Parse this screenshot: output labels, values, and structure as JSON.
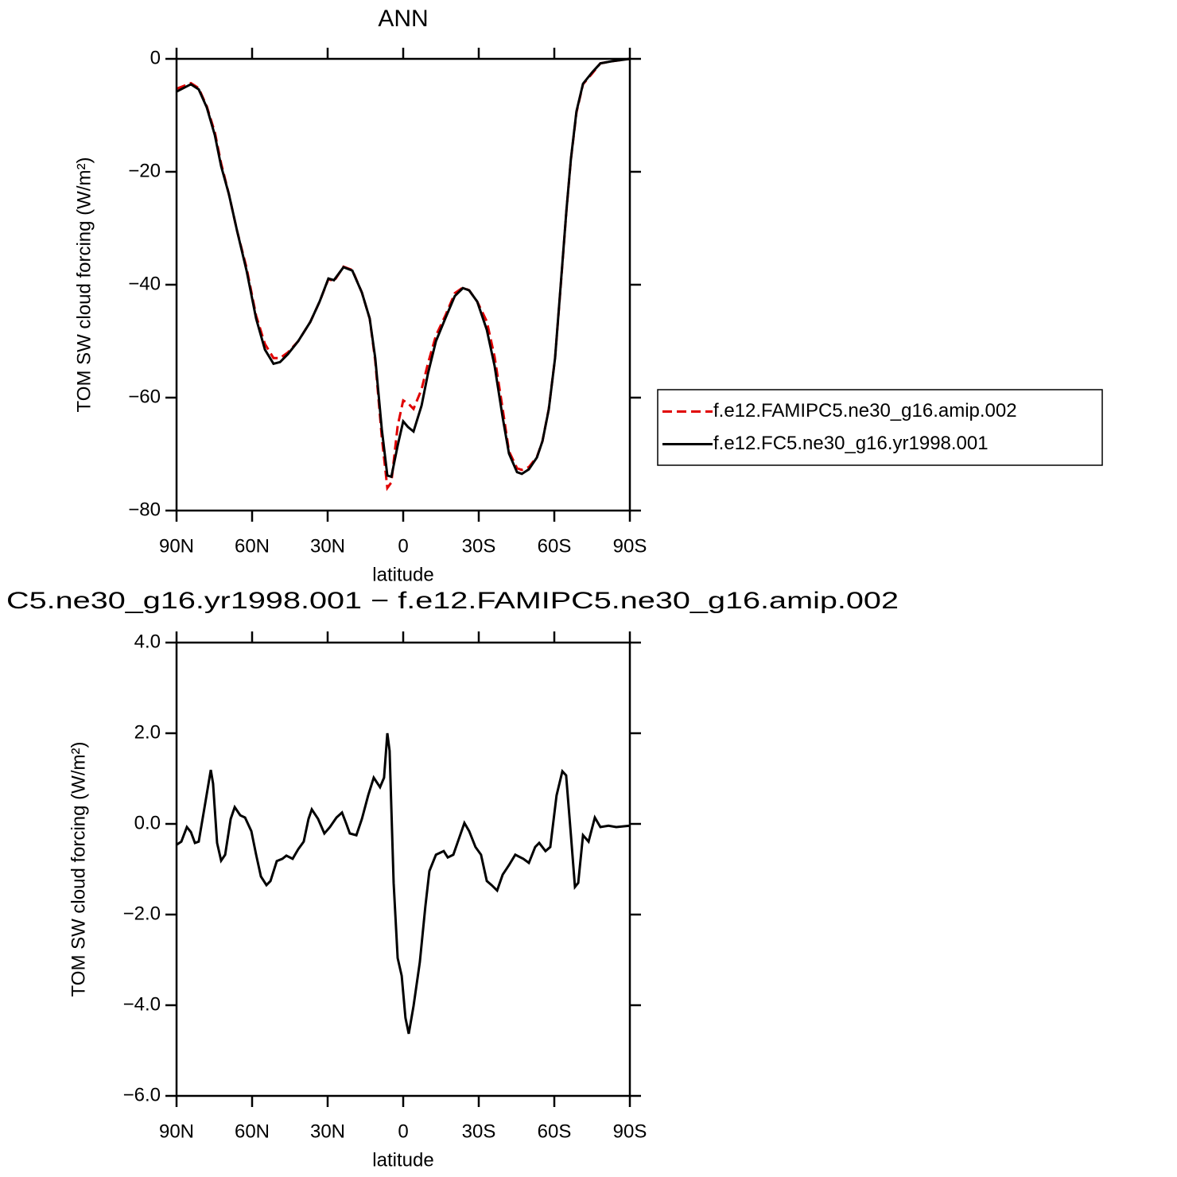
{
  "chart_data": [
    {
      "type": "line",
      "title": "ANN",
      "xlabel": "latitude",
      "ylabel": "TOM SW cloud forcing (W/m²)",
      "x": [
        90,
        84.3,
        81.2,
        78,
        74.8,
        72.3,
        69.2,
        66,
        62.2,
        58.4,
        54.9,
        51.5,
        48.9,
        45.8,
        41.7,
        36.9,
        33.2,
        29.7,
        27.5,
        23.7,
        20.2,
        16.4,
        13.3,
        11.1,
        8.5,
        6.3,
        4.7,
        2.2,
        0,
        -1.9,
        -4.1,
        -7.3,
        -9.8,
        -13,
        -16.7,
        -20.5,
        -23.7,
        -26.2,
        -29.4,
        -33.2,
        -36.3,
        -39.5,
        -42,
        -45.2,
        -47.1,
        -49.9,
        -53.1,
        -55.3,
        -57.8,
        -60.3,
        -62.5,
        -64.8,
        -66.6,
        -68.8,
        -71.4,
        -75.2,
        -78.3,
        -83.1,
        -90
      ],
      "series": [
        {
          "name": "f.e12.FAMIPC5.ne30_g16.amip.002",
          "color": "#e00000",
          "line_style": "dashed",
          "values": [
            -5.3,
            -4.3,
            -5.2,
            -8.4,
            -13,
            -18.5,
            -24,
            -30.4,
            -37,
            -45.5,
            -50.5,
            -53,
            -53,
            -52,
            -50,
            -46.6,
            -43,
            -39,
            -39.4,
            -36.8,
            -37.4,
            -41.4,
            -46,
            -53.5,
            -67,
            -76,
            -75,
            -65,
            -60.5,
            -61,
            -62,
            -58.5,
            -54,
            -49,
            -45.5,
            -41.5,
            -40.5,
            -41,
            -43,
            -46.5,
            -52.8,
            -62,
            -69.5,
            -72.5,
            -72.8,
            -72.3,
            -70.5,
            -67.7,
            -62,
            -53,
            -40.5,
            -27,
            -17.8,
            -9.5,
            -4.5,
            -2.5,
            -0.8,
            -0.4,
            0
          ]
        },
        {
          "name": "f.e12.FC5.ne30_g16.yr1998.001",
          "color": "#000000",
          "line_style": "solid",
          "values": [
            -5.8,
            -4.5,
            -5.4,
            -8.6,
            -13.5,
            -19,
            -24,
            -30.4,
            -37.5,
            -46,
            -51.5,
            -54,
            -53.7,
            -52.3,
            -50,
            -46.6,
            -43,
            -38.9,
            -39.2,
            -36.9,
            -37.5,
            -41.4,
            -46,
            -53,
            -65.6,
            -73.8,
            -74,
            -68.5,
            -64.2,
            -65.2,
            -66,
            -61.4,
            -55.8,
            -50,
            -46,
            -42,
            -40.6,
            -41,
            -43,
            -48,
            -54.4,
            -63.5,
            -69.9,
            -73.2,
            -73.5,
            -72.7,
            -70.6,
            -67.7,
            -62.1,
            -53,
            -40.3,
            -26.9,
            -17.7,
            -9.3,
            -4.4,
            -2.3,
            -0.8,
            -0.4,
            0
          ]
        }
      ],
      "xlim": [
        90,
        -90
      ],
      "xticks": [
        {
          "value": 90,
          "label": "90N"
        },
        {
          "value": 60,
          "label": "60N"
        },
        {
          "value": 30,
          "label": "30N"
        },
        0,
        {
          "value": -30,
          "label": "30S"
        },
        {
          "value": -60,
          "label": "60S"
        },
        {
          "value": -90,
          "label": "90S"
        }
      ],
      "ylim": [
        -80,
        0
      ],
      "yticks": [
        0,
        {
          "value": -20,
          "label": "−20"
        },
        {
          "value": -40,
          "label": "−40"
        },
        {
          "value": -60,
          "label": "−60"
        },
        {
          "value": -80,
          "label": "−80"
        }
      ],
      "legend": "right"
    },
    {
      "type": "line",
      "title": "C5.ne30_g16.yr1998.001 − f.e12.FAMIPC5.ne30_g16.amip.002",
      "xlabel": "latitude",
      "ylabel": "TOM SW cloud forcing (W/m²)",
      "x": [
        90,
        88.1,
        85.9,
        84.3,
        82.7,
        81.2,
        78.6,
        76.4,
        75.5,
        73.9,
        72.3,
        70.7,
        68.5,
        66.9,
        64.7,
        62.8,
        60.3,
        58.4,
        56.5,
        54.3,
        52.7,
        50.2,
        48,
        46.4,
        43.9,
        41.7,
        39.5,
        37.6,
        36.3,
        33.8,
        31.3,
        29.1,
        26.5,
        24.3,
        22.7,
        21.2,
        18.6,
        16.4,
        13.9,
        11.7,
        9.2,
        7.6,
        6.3,
        5.4,
        3.8,
        2.2,
        0.6,
        -0.9,
        -2.2,
        -4.1,
        -6.6,
        -8.8,
        -10.4,
        -13,
        -16.1,
        -17.7,
        -19.9,
        -22.1,
        -24.3,
        -26.2,
        -28.7,
        -30.9,
        -33.2,
        -35.1,
        -37.3,
        -39.5,
        -42,
        -44.5,
        -47.7,
        -49.9,
        -52.4,
        -54,
        -56.5,
        -58.4,
        -60.9,
        -63.2,
        -64.7,
        -66.6,
        -68.2,
        -69.5,
        -71.4,
        -73.6,
        -76.1,
        -78.3,
        -81.5,
        -84.6,
        -90
      ],
      "series": [
        {
          "color": "#000000",
          "line_style": "solid",
          "values": [
            -0.46,
            -0.39,
            -0.07,
            -0.18,
            -0.42,
            -0.39,
            0.46,
            1.19,
            0.89,
            -0.42,
            -0.81,
            -0.68,
            0.11,
            0.37,
            0.19,
            0.14,
            -0.16,
            -0.68,
            -1.16,
            -1.35,
            -1.26,
            -0.82,
            -0.77,
            -0.7,
            -0.77,
            -0.56,
            -0.39,
            0.11,
            0.32,
            0.11,
            -0.21,
            -0.07,
            0.14,
            0.25,
            0.02,
            -0.21,
            -0.25,
            0.11,
            0.63,
            1.02,
            0.81,
            1.02,
            2.0,
            1.61,
            -1.3,
            -2.96,
            -3.35,
            -4.28,
            -4.63,
            -4.02,
            -3.05,
            -1.82,
            -1.04,
            -0.68,
            -0.6,
            -0.74,
            -0.68,
            -0.33,
            0.02,
            -0.16,
            -0.51,
            -0.68,
            -1.26,
            -1.35,
            -1.47,
            -1.12,
            -0.91,
            -0.68,
            -0.77,
            -0.86,
            -0.51,
            -0.42,
            -0.6,
            -0.51,
            0.63,
            1.16,
            1.07,
            -0.25,
            -1.39,
            -1.3,
            -0.25,
            -0.39,
            0.14,
            -0.07,
            -0.04,
            -0.07,
            -0.04
          ]
        }
      ],
      "xlim": [
        90,
        -90
      ],
      "xticks": [
        {
          "value": 90,
          "label": "90N"
        },
        {
          "value": 60,
          "label": "60N"
        },
        {
          "value": 30,
          "label": "30N"
        },
        0,
        {
          "value": -30,
          "label": "30S"
        },
        {
          "value": -60,
          "label": "60S"
        },
        {
          "value": -90,
          "label": "90S"
        }
      ],
      "ylim": [
        -6,
        4
      ],
      "yticks": [
        {
          "value": 4,
          "label": "4.0"
        },
        {
          "value": 2,
          "label": "2.0"
        },
        {
          "value": 0,
          "label": "0.0"
        },
        {
          "value": -2,
          "label": "−2.0"
        },
        {
          "value": -4,
          "label": "−4.0"
        },
        {
          "value": -6,
          "label": "−6.0"
        }
      ]
    }
  ]
}
